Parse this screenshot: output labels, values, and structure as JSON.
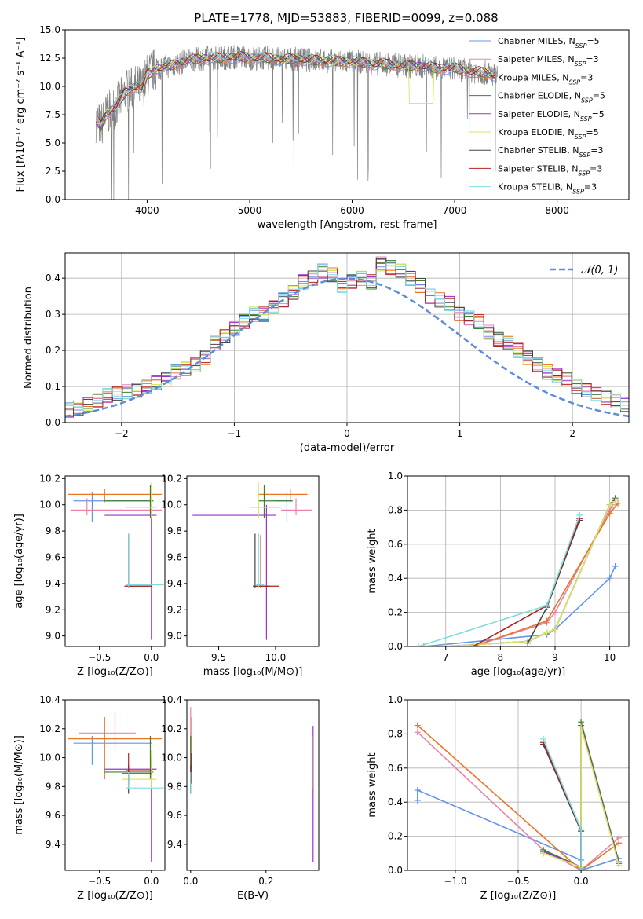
{
  "colors": {
    "Chabrier MILES": "#6495ed",
    "Salpeter MILES": "#ea84a6",
    "Kroupa MILES": "#ea7525",
    "Chabrier ELODIE": "#3e7f2e",
    "Salpeter ELODIE": "#9932cc",
    "Kroupa ELODIE": "#d6e85a",
    "Chabrier STELIB": "#444444",
    "Salpeter STELIB": "#b22222",
    "Kroupa STELIB": "#7fdbe0",
    "data": "#808080"
  },
  "legend": [
    {
      "key": "Chabrier MILES",
      "pre": "Chabrier MILES, N",
      "sub": "SSP",
      "post": "=5"
    },
    {
      "key": "Salpeter MILES",
      "pre": "Salpeter MILES, N",
      "sub": "SSP",
      "post": "=3"
    },
    {
      "key": "Kroupa MILES",
      "pre": "Kroupa MILES, N",
      "sub": "SSP",
      "post": "=3"
    },
    {
      "key": "Chabrier ELODIE",
      "pre": "Chabrier ELODIE, N",
      "sub": "SSP",
      "post": "=5"
    },
    {
      "key": "Salpeter ELODIE",
      "pre": "Salpeter ELODIE, N",
      "sub": "SSP",
      "post": "=5"
    },
    {
      "key": "Kroupa ELODIE",
      "pre": "Kroupa ELODIE, N",
      "sub": "SSP",
      "post": "=5"
    },
    {
      "key": "Chabrier STELIB",
      "pre": "Chabrier STELIB, N",
      "sub": "SSP",
      "post": "=3"
    },
    {
      "key": "Salpeter STELIB",
      "pre": "Salpeter STELIB, N",
      "sub": "SSP",
      "post": "=3"
    },
    {
      "key": "Kroupa STELIB",
      "pre": "Kroupa STELIB, N",
      "sub": "SSP",
      "post": "=3"
    }
  ],
  "chart_data": [
    {
      "id": "spectrum",
      "type": "line",
      "title": "PLATE=1778, MJD=53883, FIBERID=0099, z=0.088",
      "xlabel": "wavelength [Angstrom, rest frame]",
      "ylabel": "Flux [fλ10⁻¹⁷ erg cm⁻² s⁻¹ A⁻¹]",
      "xlim": [
        3200,
        8700
      ],
      "ylim": [
        0,
        15
      ],
      "xticks": [
        4000,
        5000,
        6000,
        7000,
        8000
      ],
      "yticks": [
        0.0,
        2.5,
        5.0,
        7.5,
        10.0,
        12.5,
        15.0
      ],
      "grid": false,
      "model_x": [
        3500,
        3550,
        3600,
        3700,
        3800,
        3900,
        3950,
        4000,
        4100,
        4200,
        4300,
        4400,
        4500,
        4600,
        4700,
        4800,
        4900,
        5000,
        5100,
        5200,
        5300,
        5400,
        5500,
        5600,
        5700,
        5800,
        5900,
        6000,
        6100,
        6200,
        6300,
        6400,
        6500,
        6600,
        6700,
        6800,
        6900,
        7000,
        7100,
        7200,
        7300,
        7400
      ],
      "model_y": [
        7.0,
        6.5,
        7.5,
        8.3,
        9.6,
        10.0,
        9.8,
        11.0,
        11.6,
        11.8,
        12.0,
        12.3,
        12.4,
        12.5,
        12.5,
        12.6,
        12.6,
        12.5,
        12.5,
        12.5,
        12.4,
        12.4,
        12.4,
        12.3,
        12.3,
        12.2,
        12.2,
        12.2,
        12.1,
        12.0,
        12.0,
        11.9,
        11.8,
        11.8,
        11.8,
        11.6,
        11.6,
        11.6,
        11.4,
        11.3,
        11.2,
        11.0
      ],
      "data_note": "noisy observed spectrum",
      "legend_loc": "upper right"
    },
    {
      "id": "residuals",
      "type": "histogram",
      "xlabel": "(data-model)/error",
      "ylabel": "Normed distribution",
      "xlim": [
        -2.5,
        2.5
      ],
      "ylim": [
        0,
        0.47
      ],
      "xticks": [
        -2,
        -1,
        0,
        1,
        2
      ],
      "yticks": [
        0.0,
        0.1,
        0.2,
        0.3,
        0.4
      ],
      "grid": true,
      "bin_width": 0.1,
      "profile": [
        0.03,
        0.035,
        0.04,
        0.05,
        0.06,
        0.075,
        0.08,
        0.085,
        0.09,
        0.1,
        0.11,
        0.12,
        0.14,
        0.15,
        0.16,
        0.18,
        0.22,
        0.24,
        0.26,
        0.28,
        0.3,
        0.3,
        0.32,
        0.34,
        0.36,
        0.39,
        0.4,
        0.42,
        0.41,
        0.38,
        0.39,
        0.4,
        0.39,
        0.44,
        0.43,
        0.42,
        0.4,
        0.38,
        0.35,
        0.34,
        0.33,
        0.3,
        0.29,
        0.28,
        0.25,
        0.23,
        0.22,
        0.2,
        0.18,
        0.16,
        0.14,
        0.13,
        0.12,
        0.1,
        0.09,
        0.08,
        0.07,
        0.06,
        0.05,
        0.04
      ],
      "gauss_label": "𝒩(0, 1)",
      "legend_loc": "upper right"
    },
    {
      "id": "age_vs_Z",
      "type": "errorbar",
      "xlabel": "Z [log₁₀(Z/Z⊙)]",
      "ylabel": "age  [log₁₀(age/yr)]",
      "xlim": [
        -0.83,
        0.13
      ],
      "ylim": [
        8.92,
        10.22
      ],
      "xticks": [
        -0.5,
        0.0
      ],
      "yticks": [
        9.0,
        9.2,
        9.4,
        9.6,
        9.8,
        10.0,
        10.2
      ],
      "points": [
        {
          "key": "Chabrier MILES",
          "x": -0.57,
          "y": 10.03,
          "xlo": -0.75,
          "xhi": 0.0,
          "ylo": 9.87,
          "yhi": 10.1
        },
        {
          "key": "Salpeter MILES",
          "x": -0.62,
          "y": 9.96,
          "xlo": -0.78,
          "xhi": 0.1,
          "ylo": 9.92,
          "yhi": 10.05
        },
        {
          "key": "Kroupa MILES",
          "x": -0.45,
          "y": 10.08,
          "xlo": -0.8,
          "xhi": 0.1,
          "ylo": 10.02,
          "yhi": 10.12
        },
        {
          "key": "Chabrier ELODIE",
          "x": -0.01,
          "y": 10.03,
          "xlo": -0.45,
          "xhi": 0.02,
          "ylo": 9.9,
          "yhi": 10.15
        },
        {
          "key": "Salpeter ELODIE",
          "x": 0.0,
          "y": 9.92,
          "xlo": -0.45,
          "xhi": 0.05,
          "ylo": 8.97,
          "yhi": 10.0
        },
        {
          "key": "Kroupa ELODIE",
          "x": 0.0,
          "y": 9.98,
          "xlo": -0.25,
          "xhi": 0.05,
          "ylo": 9.9,
          "yhi": 10.17
        },
        {
          "key": "Chabrier STELIB",
          "x": -0.22,
          "y": 9.38,
          "xlo": -0.25,
          "xhi": 0.0,
          "ylo": 9.37,
          "yhi": 9.78
        },
        {
          "key": "Salpeter STELIB",
          "x": -0.22,
          "y": 9.38,
          "xlo": -0.26,
          "xhi": 0.01,
          "ylo": 9.37,
          "yhi": 9.77
        },
        {
          "key": "Kroupa STELIB",
          "x": -0.22,
          "y": 9.39,
          "xlo": -0.24,
          "xhi": 0.12,
          "ylo": 9.37,
          "yhi": 9.78
        }
      ]
    },
    {
      "id": "age_vs_mass",
      "type": "errorbar",
      "xlabel": "mass [log₁₀(M/M⊙)]",
      "ylabel": "",
      "xlim": [
        9.22,
        10.38
      ],
      "ylim": [
        8.92,
        10.22
      ],
      "xticks": [
        9.5,
        10.0
      ],
      "yticks": [
        9.0,
        9.2,
        9.4,
        9.6,
        9.8,
        10.0,
        10.2
      ],
      "points": [
        {
          "key": "Chabrier MILES",
          "x": 10.1,
          "y": 10.03,
          "xlo": 10.0,
          "xhi": 10.15,
          "ylo": 9.87,
          "yhi": 10.1
        },
        {
          "key": "Salpeter MILES",
          "x": 10.18,
          "y": 9.96,
          "xlo": 10.05,
          "xhi": 10.32,
          "ylo": 9.92,
          "yhi": 10.05
        },
        {
          "key": "Kroupa MILES",
          "x": 10.13,
          "y": 10.08,
          "xlo": 9.85,
          "xhi": 10.28,
          "ylo": 10.02,
          "yhi": 10.12
        },
        {
          "key": "Chabrier ELODIE",
          "x": 9.9,
          "y": 10.03,
          "xlo": 9.85,
          "xhi": 10.15,
          "ylo": 9.9,
          "yhi": 10.15
        },
        {
          "key": "Salpeter ELODIE",
          "x": 9.92,
          "y": 9.92,
          "xlo": 9.27,
          "xhi": 10.0,
          "ylo": 8.97,
          "yhi": 10.0
        },
        {
          "key": "Kroupa ELODIE",
          "x": 9.85,
          "y": 9.98,
          "xlo": 9.78,
          "xhi": 10.05,
          "ylo": 9.9,
          "yhi": 10.17
        },
        {
          "key": "Chabrier STELIB",
          "x": 9.82,
          "y": 9.38,
          "xlo": 9.8,
          "xhi": 9.95,
          "ylo": 9.37,
          "yhi": 9.78
        },
        {
          "key": "Salpeter STELIB",
          "x": 9.87,
          "y": 9.38,
          "xlo": 9.82,
          "xhi": 10.03,
          "ylo": 9.37,
          "yhi": 9.77
        },
        {
          "key": "Kroupa STELIB",
          "x": 9.85,
          "y": 9.39,
          "xlo": 9.83,
          "xhi": 9.9,
          "ylo": 9.37,
          "yhi": 9.78
        }
      ]
    },
    {
      "id": "weight_vs_age",
      "type": "line",
      "xlabel": "age  [log₁₀(age/yr)]",
      "ylabel": "mass weight",
      "xlim": [
        6.3,
        10.35
      ],
      "ylim": [
        0,
        1
      ],
      "xticks": [
        7,
        8,
        9,
        10
      ],
      "yticks": [
        0.0,
        0.2,
        0.4,
        0.6,
        0.8,
        1.0
      ],
      "grid": true,
      "series": [
        {
          "key": "Chabrier MILES",
          "x": [
            6.6,
            8.85,
            9.0,
            10.0,
            10.1
          ],
          "y": [
            0.0,
            0.07,
            0.1,
            0.4,
            0.47
          ]
        },
        {
          "key": "Salpeter MILES",
          "x": [
            7.5,
            8.85,
            9.0,
            10.0,
            10.05
          ],
          "y": [
            0.0,
            0.14,
            0.2,
            0.8,
            0.83
          ]
        },
        {
          "key": "Kroupa MILES",
          "x": [
            7.5,
            8.85,
            10.0,
            10.15
          ],
          "y": [
            0.0,
            0.15,
            0.78,
            0.84
          ]
        },
        {
          "key": "Chabrier ELODIE",
          "x": [
            7.0,
            8.5,
            8.85,
            9.0,
            10.0,
            10.1
          ],
          "y": [
            0.0,
            0.03,
            0.08,
            0.1,
            0.83,
            0.87
          ]
        },
        {
          "key": "Salpeter ELODIE",
          "x": [
            7.0,
            8.5,
            8.85,
            9.0,
            10.0,
            10.1
          ],
          "y": [
            0.0,
            0.03,
            0.08,
            0.1,
            0.83,
            0.86
          ]
        },
        {
          "key": "Kroupa ELODIE",
          "x": [
            7.0,
            8.5,
            8.85,
            9.0,
            10.0,
            10.1
          ],
          "y": [
            0.0,
            0.03,
            0.08,
            0.1,
            0.83,
            0.85
          ]
        },
        {
          "key": "Chabrier STELIB",
          "x": [
            8.5,
            8.85,
            9.45
          ],
          "y": [
            0.02,
            0.23,
            0.74
          ]
        },
        {
          "key": "Salpeter STELIB",
          "x": [
            7.5,
            8.85,
            9.45
          ],
          "y": [
            0.0,
            0.24,
            0.75
          ]
        },
        {
          "key": "Kroupa STELIB",
          "x": [
            6.5,
            8.85,
            9.45
          ],
          "y": [
            0.0,
            0.24,
            0.77
          ]
        }
      ]
    },
    {
      "id": "mass_vs_Z",
      "type": "errorbar",
      "xlabel": "Z [log₁₀(Z/Z⊙)]",
      "ylabel": "mass [log₁₀(M/M⊙)]",
      "xlim": [
        -0.83,
        0.13
      ],
      "ylim": [
        9.22,
        10.4
      ],
      "xticks": [
        -0.5,
        0.0
      ],
      "yticks": [
        9.4,
        9.6,
        9.8,
        10.0,
        10.2,
        10.4
      ],
      "points": [
        {
          "key": "Chabrier MILES",
          "x": -0.57,
          "y": 10.1,
          "xlo": -0.75,
          "xhi": 0.0,
          "ylo": 9.95,
          "yhi": 10.15
        },
        {
          "key": "Salpeter MILES",
          "x": -0.35,
          "y": 10.17,
          "xlo": -0.7,
          "xhi": -0.15,
          "ylo": 10.05,
          "yhi": 10.32
        },
        {
          "key": "Kroupa MILES",
          "x": -0.45,
          "y": 10.13,
          "xlo": -0.8,
          "xhi": 0.1,
          "ylo": 9.85,
          "yhi": 10.28
        },
        {
          "key": "Chabrier ELODIE",
          "x": -0.01,
          "y": 9.9,
          "xlo": -0.45,
          "xhi": 0.02,
          "ylo": 9.85,
          "yhi": 10.15
        },
        {
          "key": "Salpeter ELODIE",
          "x": 0.0,
          "y": 9.92,
          "xlo": -0.45,
          "xhi": 0.05,
          "ylo": 9.28,
          "yhi": 10.0
        },
        {
          "key": "Kroupa ELODIE",
          "x": 0.0,
          "y": 9.85,
          "xlo": -0.28,
          "xhi": 0.05,
          "ylo": 9.78,
          "yhi": 10.05
        },
        {
          "key": "Chabrier STELIB",
          "x": -0.22,
          "y": 9.89,
          "xlo": -0.28,
          "xhi": 0.0,
          "ylo": 9.75,
          "yhi": 9.95
        },
        {
          "key": "Salpeter STELIB",
          "x": -0.22,
          "y": 9.91,
          "xlo": -0.25,
          "xhi": 0.01,
          "ylo": 9.82,
          "yhi": 10.03
        },
        {
          "key": "Kroupa STELIB",
          "x": -0.22,
          "y": 9.79,
          "xlo": -0.24,
          "xhi": 0.12,
          "ylo": 9.78,
          "yhi": 9.9
        }
      ]
    },
    {
      "id": "mass_vs_EBV",
      "type": "errorbar",
      "xlabel": "E(B-V)",
      "ylabel": "",
      "xlim": [
        -0.01,
        0.34
      ],
      "ylim": [
        9.22,
        10.4
      ],
      "xticks": [
        0.0,
        0.2
      ],
      "yticks": [
        9.4,
        9.6,
        9.8,
        10.0,
        10.2,
        10.4
      ],
      "points": [
        {
          "key": "Chabrier MILES",
          "x": 0.0,
          "y": 10.1,
          "xlo": 0.0,
          "xhi": 0.0,
          "ylo": 9.95,
          "yhi": 10.15
        },
        {
          "key": "Salpeter MILES",
          "x": 0.0,
          "y": 10.17,
          "xlo": 0.0,
          "xhi": 0.0,
          "ylo": 10.05,
          "yhi": 10.35
        },
        {
          "key": "Kroupa MILES",
          "x": 0.003,
          "y": 10.13,
          "xlo": 0.003,
          "xhi": 0.003,
          "ylo": 9.85,
          "yhi": 10.28
        },
        {
          "key": "Chabrier ELODIE",
          "x": 0.0,
          "y": 9.9,
          "xlo": 0.0,
          "xhi": 0.0,
          "ylo": 9.75,
          "yhi": 10.15
        },
        {
          "key": "Salpeter ELODIE",
          "x": 0.325,
          "y": 10.17,
          "xlo": 0.325,
          "xhi": 0.325,
          "ylo": 9.28,
          "yhi": 10.22
        },
        {
          "key": "Kroupa ELODIE",
          "x": 0.323,
          "y": 9.85,
          "xlo": 0.323,
          "xhi": 0.323,
          "ylo": 9.78,
          "yhi": 10.15
        },
        {
          "key": "Chabrier STELIB",
          "x": 0.0,
          "y": 9.89,
          "xlo": 0.0,
          "xhi": 0.0,
          "ylo": 9.75,
          "yhi": 9.95
        },
        {
          "key": "Salpeter STELIB",
          "x": 0.002,
          "y": 9.91,
          "xlo": 0.002,
          "xhi": 0.002,
          "ylo": 9.82,
          "yhi": 10.03
        },
        {
          "key": "Kroupa STELIB",
          "x": 0.0,
          "y": 9.79,
          "xlo": 0.0,
          "xhi": 0.0,
          "ylo": 9.75,
          "yhi": 9.9
        }
      ]
    },
    {
      "id": "weight_vs_Z",
      "type": "line",
      "xlabel": "Z [log₁₀(Z/Z⊙)]",
      "ylabel": "mass weight",
      "xlim": [
        -1.38,
        0.38
      ],
      "ylim": [
        0,
        1
      ],
      "xticks": [
        -1.0,
        -0.5,
        0.0
      ],
      "yticks": [
        0.0,
        0.2,
        0.4,
        0.6,
        0.8,
        1.0
      ],
      "grid": true,
      "series": [
        {
          "key": "Chabrier MILES",
          "x": [
            -1.3,
            -1.3,
            0.0,
            0.0,
            0.3
          ],
          "y": [
            0.41,
            0.47,
            0.06,
            0.0,
            0.07
          ]
        },
        {
          "key": "Salpeter MILES",
          "x": [
            -1.3,
            -0.3,
            0.0,
            0.3
          ],
          "y": [
            0.81,
            0.12,
            0.0,
            0.19
          ]
        },
        {
          "key": "Kroupa MILES",
          "x": [
            -1.3,
            0.0,
            0.3
          ],
          "y": [
            0.85,
            0.0,
            0.16
          ]
        },
        {
          "key": "Chabrier ELODIE",
          "x": [
            -0.3,
            -0.3,
            0.0,
            0.0,
            0.3
          ],
          "y": [
            0.1,
            0.12,
            0.02,
            0.87,
            0.05
          ]
        },
        {
          "key": "Salpeter ELODIE",
          "x": [
            -0.3,
            0.0,
            0.0,
            0.3
          ],
          "y": [
            0.11,
            0.02,
            0.85,
            0.04
          ]
        },
        {
          "key": "Kroupa ELODIE",
          "x": [
            -0.3,
            0.0,
            0.0,
            0.3
          ],
          "y": [
            0.1,
            0.02,
            0.84,
            0.03
          ]
        },
        {
          "key": "Chabrier STELIB",
          "x": [
            -0.3,
            0.0,
            0.0
          ],
          "y": [
            0.74,
            0.23,
            0.01
          ]
        },
        {
          "key": "Salpeter STELIB",
          "x": [
            -0.3,
            0.0,
            0.0
          ],
          "y": [
            0.75,
            0.24,
            0.01
          ]
        },
        {
          "key": "Kroupa STELIB",
          "x": [
            -0.3,
            0.0,
            0.0
          ],
          "y": [
            0.77,
            0.24,
            0.01
          ]
        }
      ]
    }
  ]
}
